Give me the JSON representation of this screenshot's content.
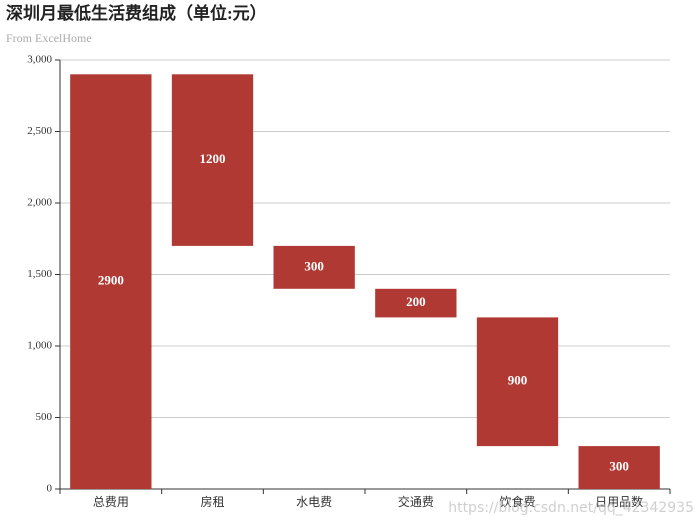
{
  "chart_data": {
    "type": "waterfall",
    "title": "深圳月最低生活费组成（单位:元）",
    "subtitle": "From ExcelHome",
    "categories": [
      "总费用",
      "房租",
      "水电费",
      "交通费",
      "饮食费",
      "日用品数"
    ],
    "values": [
      2900,
      1200,
      300,
      200,
      900,
      300
    ],
    "color": "#b03a33",
    "ylim": [
      0,
      3000
    ],
    "yticks": [
      0,
      500,
      {
        "value": 1000,
        "label": "1,000"
      },
      {
        "value": 1500,
        "label": "1,500"
      },
      {
        "value": 2000,
        "label": "2,000"
      },
      {
        "value": 2500,
        "label": "2,500"
      },
      {
        "value": 3000,
        "label": "3,000"
      }
    ],
    "grid": true,
    "watermark": "https://blog.csdn.net/qq_42342935"
  }
}
